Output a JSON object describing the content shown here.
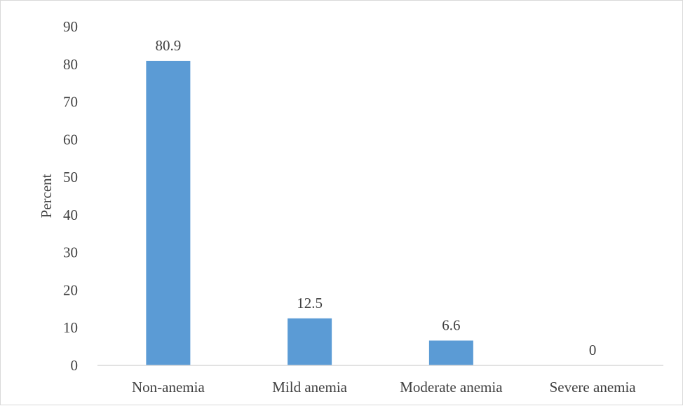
{
  "chart_data": {
    "type": "bar",
    "categories": [
      "Non-anemia",
      "Mild anemia",
      "Moderate anemia",
      "Severe anemia"
    ],
    "values": [
      80.9,
      12.5,
      6.6,
      0
    ],
    "data_labels": [
      "80.9",
      "12.5",
      "6.6",
      "0"
    ],
    "title": "",
    "xlabel": "",
    "ylabel": "Percent",
    "ylim": [
      0,
      90
    ],
    "yticks": [
      0,
      10,
      20,
      30,
      40,
      50,
      60,
      70,
      80,
      90
    ],
    "ytick_labels": [
      "0",
      "10",
      "20",
      "30",
      "40",
      "50",
      "60",
      "70",
      "80",
      "90"
    ],
    "grid": false,
    "legend": "none",
    "bar_color": "#5b9bd5",
    "axis_color": "#d9d9d9",
    "text_color": "#404040"
  }
}
